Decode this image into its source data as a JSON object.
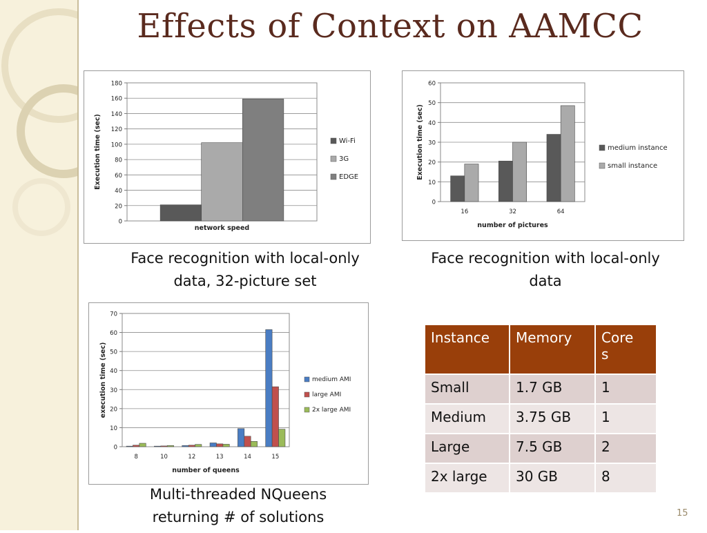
{
  "slide": {
    "title": "Effects of Context on AAMCC",
    "page_number": "15",
    "captions": {
      "chart1": "Face recognition with local-only data, 32-picture set",
      "chart2": "Face recognition with local-only data",
      "chart3": "Multi-threaded NQueens returning # of solutions"
    }
  },
  "chart_data": [
    {
      "type": "bar",
      "xlabel": "network speed",
      "ylabel": "Execution time (sec)",
      "ylim": [
        0,
        180
      ],
      "yticks": [
        0,
        20,
        40,
        60,
        80,
        100,
        120,
        140,
        160,
        180
      ],
      "grid": true,
      "legend": "right",
      "categories": [
        ""
      ],
      "series": [
        {
          "name": "Wi-Fi",
          "values": [
            21
          ],
          "color": "#595959"
        },
        {
          "name": "3G",
          "values": [
            102
          ],
          "color": "#aaaaaa"
        },
        {
          "name": "EDGE",
          "values": [
            159
          ],
          "color": "#7f7f7f"
        }
      ]
    },
    {
      "type": "bar",
      "xlabel": "number of pictures",
      "ylabel": "Execution time (sec)",
      "ylim": [
        0,
        60
      ],
      "yticks": [
        0,
        10,
        20,
        30,
        40,
        50,
        60
      ],
      "grid": true,
      "legend": "right",
      "categories": [
        "16",
        "32",
        "64"
      ],
      "series": [
        {
          "name": "medium instance",
          "values": [
            13,
            20.5,
            34
          ],
          "color": "#595959"
        },
        {
          "name": "small instance",
          "values": [
            19,
            30,
            48.5
          ],
          "color": "#aaaaaa"
        }
      ]
    },
    {
      "type": "bar",
      "xlabel": "number of queens",
      "ylabel": "execution time (sec)",
      "ylim": [
        0,
        70
      ],
      "yticks": [
        0,
        10,
        20,
        30,
        40,
        50,
        60,
        70
      ],
      "grid": true,
      "legend": "right",
      "categories": [
        "8",
        "10",
        "12",
        "13",
        "14",
        "15"
      ],
      "series": [
        {
          "name": "medium AMI",
          "values": [
            0.3,
            0.3,
            0.6,
            2.0,
            9.5,
            61.5
          ],
          "color": "#4a7dc3"
        },
        {
          "name": "large AMI",
          "values": [
            0.8,
            0.4,
            0.8,
            1.5,
            5.5,
            31.5
          ],
          "color": "#c0504d"
        },
        {
          "name": "2x large AMI",
          "values": [
            1.8,
            0.6,
            1.2,
            1.3,
            2.8,
            9.2
          ],
          "color": "#9bbb59"
        }
      ]
    }
  ],
  "table": {
    "headers": [
      "Instance",
      "Memory",
      "Core\ns"
    ],
    "rows": [
      [
        "Small",
        "1.7 GB",
        "1"
      ],
      [
        "Medium",
        "3.75 GB",
        "1"
      ],
      [
        "Large",
        "7.5 GB",
        "2"
      ],
      [
        "2x large",
        "30 GB",
        "8"
      ]
    ],
    "colors": {
      "header_bg": "#993f0a"
    }
  },
  "colors": {
    "title": "#5a2a1e",
    "sidebar": "#f7f1dc"
  }
}
